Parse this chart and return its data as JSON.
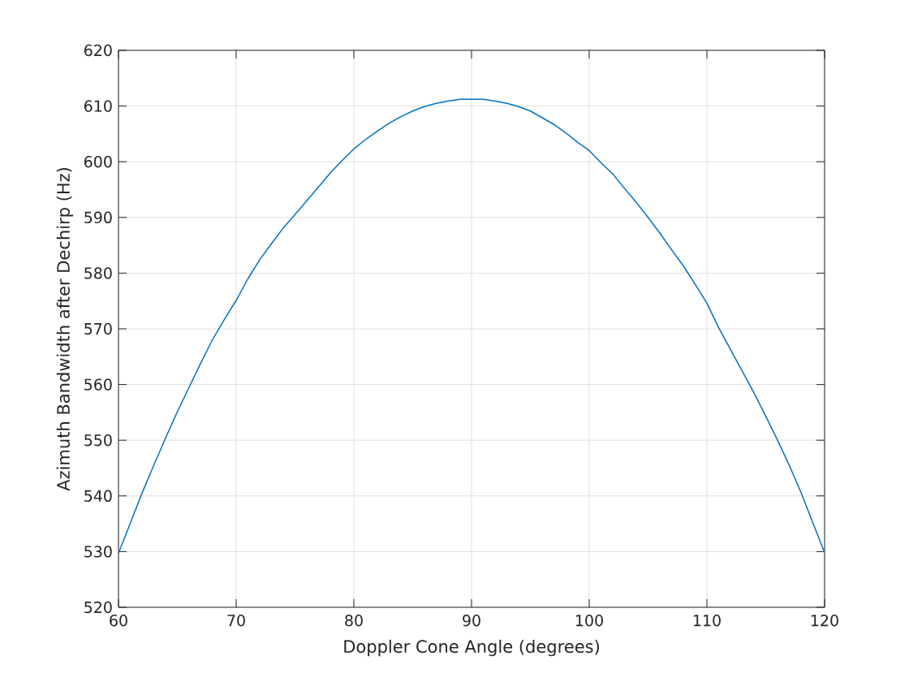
{
  "chart_data": {
    "type": "line",
    "xlabel": "Doppler Cone Angle (degrees)",
    "ylabel": "Azimuth Bandwidth after Dechirp (Hz)",
    "x": [
      60,
      61,
      62,
      63,
      64,
      65,
      66,
      67,
      68,
      69,
      70,
      71,
      72,
      73,
      74,
      75,
      76,
      77,
      78,
      79,
      80,
      81,
      82,
      83,
      84,
      85,
      86,
      87,
      88,
      89,
      90,
      91,
      92,
      93,
      94,
      95,
      96,
      97,
      98,
      99,
      100,
      101,
      102,
      103,
      104,
      105,
      106,
      107,
      108,
      109,
      110,
      111,
      112,
      113,
      114,
      115,
      116,
      117,
      118,
      119,
      120
    ],
    "series": [
      {
        "color": "#0072bd",
        "values": [
          529.7,
          535.1,
          540.5,
          545.5,
          550.4,
          555.1,
          559.5,
          563.9,
          568.1,
          571.7,
          575.1,
          579.0,
          582.4,
          585.3,
          588.1,
          590.5,
          593.0,
          595.5,
          598.0,
          600.2,
          602.3,
          604.0,
          605.5,
          606.9,
          608.1,
          609.1,
          609.9,
          610.5,
          610.9,
          611.2,
          611.2,
          611.2,
          610.9,
          610.5,
          609.9,
          609.1,
          607.9,
          606.7,
          605.2,
          603.5,
          602.0,
          599.8,
          597.8,
          595.2,
          592.7,
          590.0,
          587.2,
          584.2,
          581.3,
          578.0,
          574.6,
          570.2,
          566.3,
          562.4,
          558.5,
          554.3,
          550.0,
          545.5,
          540.6,
          535.2,
          529.8
        ]
      }
    ],
    "xlim": [
      60,
      120
    ],
    "ylim": [
      520,
      620
    ],
    "xticks": [
      60,
      70,
      80,
      90,
      100,
      110,
      120
    ],
    "yticks": [
      520,
      530,
      540,
      550,
      560,
      570,
      580,
      590,
      600,
      610,
      620
    ],
    "grid": true,
    "marker": "none",
    "line_style": "solid"
  }
}
